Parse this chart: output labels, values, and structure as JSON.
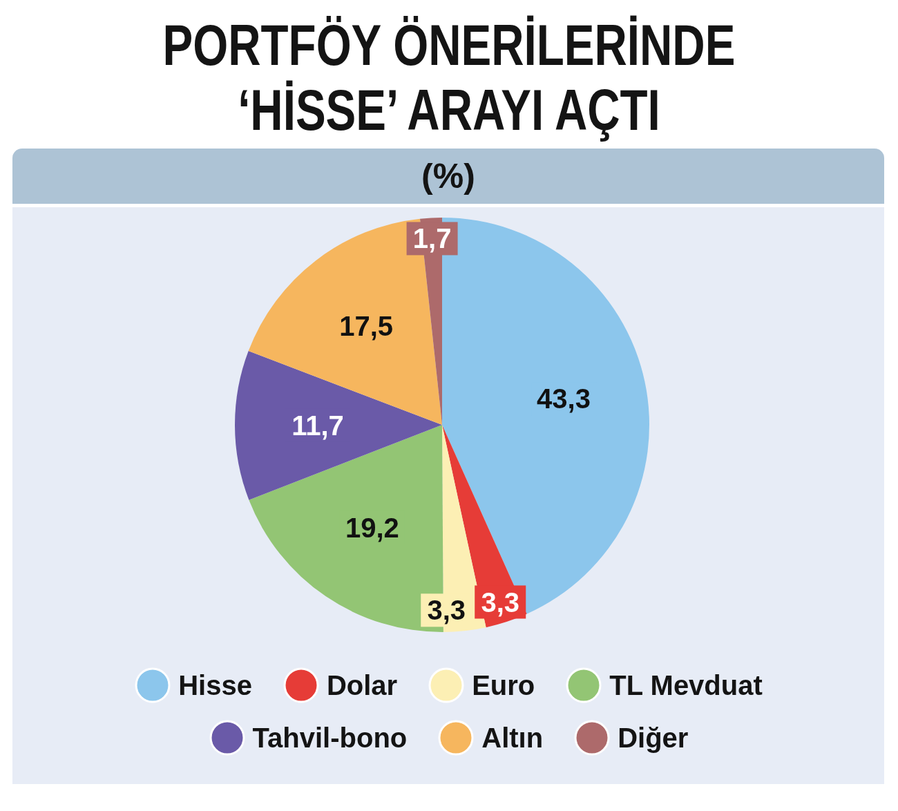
{
  "chart_data": {
    "type": "pie",
    "title": "PORTFÖY ÖNERİLERİNDE ‘HİSSE’ ARAYI AÇTI",
    "subtitle": "(%)",
    "categories": [
      "Hisse",
      "Dolar",
      "Euro",
      "TL Mevduat",
      "Tahvil-bono",
      "Altın",
      "Diğer"
    ],
    "values": [
      43.3,
      3.3,
      3.3,
      19.2,
      11.7,
      17.5,
      1.7
    ],
    "colors": [
      "#8cc6ec",
      "#e63c37",
      "#fcefb4",
      "#93c574",
      "#6a5aa8",
      "#f6b65e",
      "#ad6a6b"
    ],
    "value_labels": [
      "43,3",
      "3,3",
      "3,3",
      "19,2",
      "11,7",
      "17,5",
      "1,7"
    ],
    "legend": "bottom"
  }
}
